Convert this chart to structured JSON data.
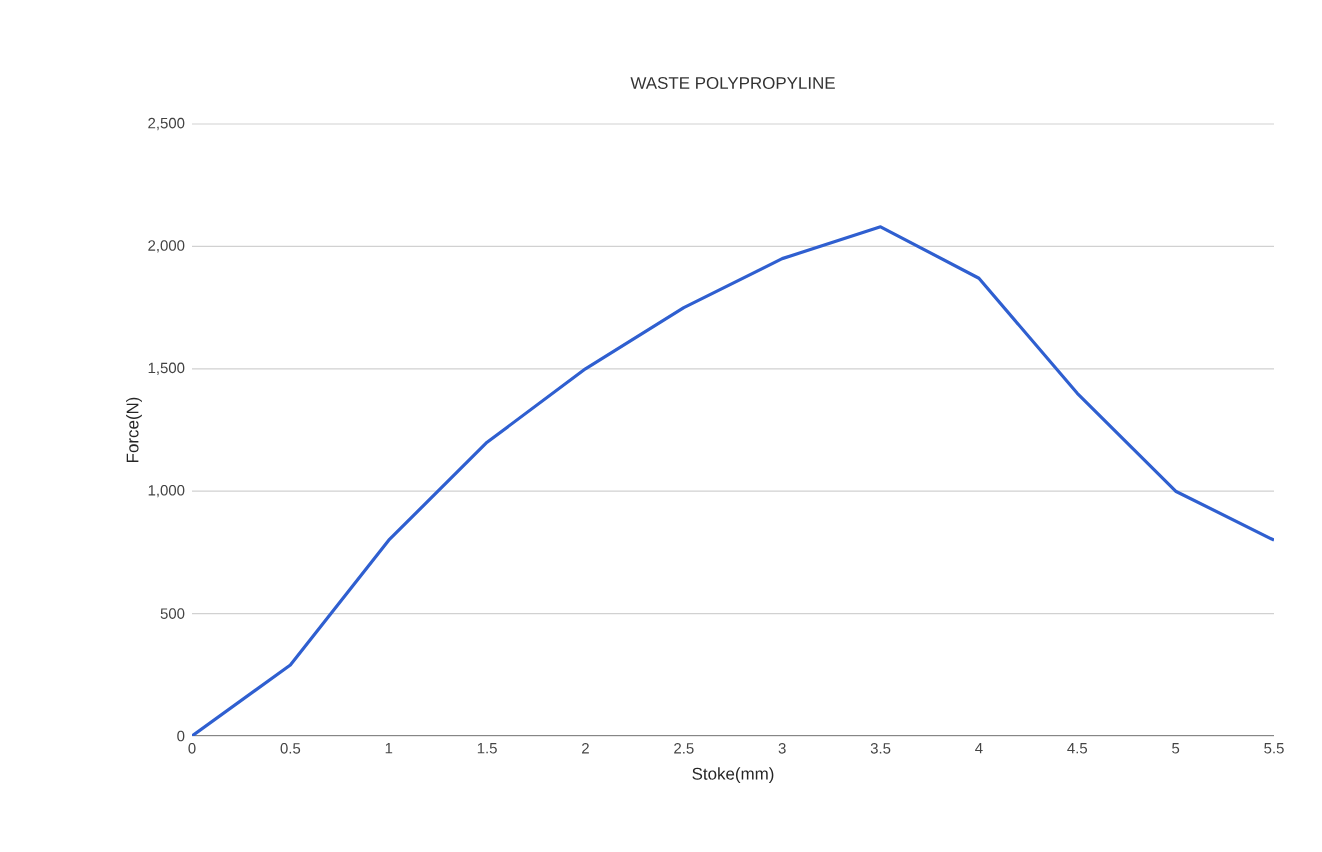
{
  "chart_data": {
    "type": "line",
    "title": "WASTE POLYPROPYLINE",
    "xlabel": "Stoke(mm)",
    "ylabel": "Force(N)",
    "x": [
      0,
      0.5,
      1,
      1.5,
      2,
      2.5,
      3,
      3.5,
      4,
      4.5,
      5,
      5.5
    ],
    "series": [
      {
        "color": "#2f5fd0",
        "values": [
          0,
          290,
          800,
          1200,
          1500,
          1750,
          1950,
          2080,
          1870,
          1400,
          1000,
          800
        ]
      }
    ],
    "xlim": [
      0,
      5.5
    ],
    "ylim": [
      0,
      2500
    ],
    "xticks": [
      0,
      0.5,
      1,
      1.5,
      2,
      2.5,
      3,
      3.5,
      4,
      4.5,
      5,
      5.5
    ],
    "yticks": [
      0,
      500,
      {
        "value": 1000,
        "label": "1,000"
      },
      {
        "value": 1500,
        "label": "1,500"
      },
      {
        "value": 2000,
        "label": "2,000"
      },
      {
        "value": 2500,
        "label": "2,500"
      }
    ],
    "grid": "y",
    "marker": "none",
    "line_style": "solid"
  }
}
